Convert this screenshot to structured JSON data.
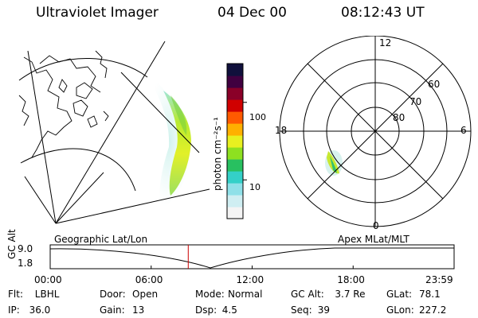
{
  "header": {
    "title": "Ultraviolet Imager",
    "date": "04 Dec 00",
    "time": "08:12:43 UT"
  },
  "colorbar": {
    "unit_label": "photon cm⁻²s⁻¹",
    "tick_labels": [
      "100",
      "10"
    ],
    "tick_values": [
      100,
      10
    ],
    "log_scale": true,
    "colors": [
      "#f4f4f4",
      "#cfeef2",
      "#8fe0e8",
      "#34d0c8",
      "#28c060",
      "#8ee020",
      "#e8f020",
      "#ffb000",
      "#ff5a00",
      "#d00000",
      "#8a0028",
      "#400040",
      "#10103c"
    ]
  },
  "polar_plot": {
    "mlt_labels": [
      "12",
      "18",
      "6",
      "0"
    ],
    "lat_labels": [
      "60",
      "70",
      "80"
    ]
  },
  "timeline": {
    "ylabel": "GC Alt",
    "ytick_labels": [
      "9.0",
      "1.8"
    ],
    "left_label": "Geographic Lat/Lon",
    "right_label": "Apex MLat/MLT",
    "xtick_labels": [
      "00:00",
      "06:00",
      "12:00",
      "18:00",
      "23:59"
    ],
    "current_time_fraction": 0.3418,
    "marker_color": "#cc0000"
  },
  "footer": {
    "row1": [
      {
        "key": "Flt:",
        "val": "LBHL"
      },
      {
        "key": "Door:",
        "val": "Open"
      },
      {
        "key": "Mode:",
        "val": "Normal"
      },
      {
        "key": "GC Alt:",
        "val": "3.7 Re"
      },
      {
        "key": "GLat:",
        "val": "78.1"
      }
    ],
    "row2": [
      {
        "key": "IP:",
        "val": "36.0"
      },
      {
        "key": "Gain:",
        "val": "13"
      },
      {
        "key": "Dsp:",
        "val": "4.5"
      },
      {
        "key": "Seq:",
        "val": "39"
      },
      {
        "key": "GLon:",
        "val": "227.2"
      }
    ]
  }
}
